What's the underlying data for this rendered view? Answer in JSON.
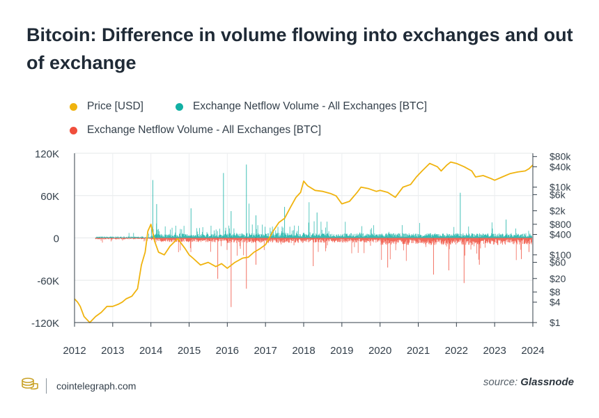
{
  "title": "Bitcoin: Difference in volume flowing into exchanges and out of exchange",
  "legend": [
    {
      "label": "Price [USD]",
      "color": "#f0b30e"
    },
    {
      "label": "Exchange Netflow Volume - All Exchanges [BTC]",
      "color": "#12b0a4"
    },
    {
      "label": "Exchange Netflow Volume - All Exchanges [BTC]",
      "color": "#f04e3c"
    }
  ],
  "brand": {
    "icon": "cointelegraph-logo-icon",
    "text": "cointelegraph.com"
  },
  "source": {
    "prefix": "source:",
    "name": "Glassnode"
  },
  "chart_data": {
    "type": "line",
    "grid": true,
    "x_ticks": [
      "2012",
      "2013",
      "2014",
      "2015",
      "2016",
      "2017",
      "2018",
      "2019",
      "2020",
      "2021",
      "2022",
      "2023",
      "2024"
    ],
    "xlim": [
      2012,
      2024
    ],
    "left_axis": {
      "ticks": [
        "120K",
        "60K",
        "0",
        "-60K",
        "-120K"
      ],
      "tick_values": [
        120000,
        60000,
        0,
        -60000,
        -120000
      ],
      "ylim": [
        -120000,
        120000
      ]
    },
    "right_axis": {
      "scale": "log",
      "ticks": [
        "$80k",
        "$40k",
        "$10k",
        "$6k",
        "$2k",
        "$800",
        "$400",
        "$100",
        "$60",
        "$20",
        "$8",
        "$4",
        "$1"
      ],
      "tick_values": [
        80000,
        40000,
        10000,
        6000,
        2000,
        800,
        400,
        100,
        60,
        20,
        8,
        4,
        1
      ],
      "ylim": [
        1,
        100000
      ]
    },
    "series": [
      {
        "name": "Price [USD]",
        "axis": "right",
        "color": "#f0b30e",
        "x": [
          2012.0,
          2012.08,
          2012.15,
          2012.25,
          2012.4,
          2012.55,
          2012.7,
          2012.85,
          2013.0,
          2013.15,
          2013.25,
          2013.35,
          2013.5,
          2013.65,
          2013.75,
          2013.85,
          2013.92,
          2014.0,
          2014.1,
          2014.2,
          2014.35,
          2014.5,
          2014.7,
          2014.9,
          2015.0,
          2015.1,
          2015.3,
          2015.5,
          2015.7,
          2015.85,
          2016.0,
          2016.2,
          2016.4,
          2016.55,
          2016.7,
          2016.85,
          2017.0,
          2017.2,
          2017.35,
          2017.5,
          2017.65,
          2017.8,
          2017.92,
          2018.0,
          2018.1,
          2018.3,
          2018.5,
          2018.7,
          2018.85,
          2019.0,
          2019.2,
          2019.4,
          2019.5,
          2019.7,
          2019.9,
          2020.0,
          2020.2,
          2020.4,
          2020.6,
          2020.8,
          2020.95,
          2021.1,
          2021.3,
          2021.5,
          2021.6,
          2021.75,
          2021.85,
          2022.0,
          2022.2,
          2022.4,
          2022.5,
          2022.7,
          2022.9,
          2023.0,
          2023.2,
          2023.4,
          2023.6,
          2023.8,
          2023.9,
          2024.0
        ],
        "y": [
          5,
          4,
          3,
          1.5,
          1,
          1.5,
          2,
          3,
          3,
          3.5,
          4,
          5,
          6,
          10,
          50,
          120,
          500,
          800,
          250,
          120,
          100,
          180,
          300,
          150,
          100,
          80,
          50,
          60,
          45,
          55,
          40,
          60,
          80,
          85,
          120,
          150,
          200,
          500,
          900,
          1200,
          2500,
          5000,
          7000,
          15000,
          11000,
          8000,
          7500,
          6500,
          5500,
          3200,
          3800,
          7000,
          10000,
          9000,
          7500,
          8000,
          7000,
          5000,
          10000,
          12000,
          20000,
          30000,
          50000,
          40000,
          30000,
          45000,
          55000,
          50000,
          40000,
          30000,
          20000,
          22000,
          18000,
          16000,
          20000,
          25000,
          28000,
          30000,
          35000,
          45000
        ]
      },
      {
        "name": "Exchange Netflow Volume - All Exchanges [BTC]",
        "axis": "left",
        "color": "#12b0a4",
        "sign": "positive",
        "peaks": [
          [
            2014.05,
            82000
          ],
          [
            2014.15,
            48000
          ],
          [
            2015.05,
            42000
          ],
          [
            2015.9,
            92000
          ],
          [
            2016.1,
            38000
          ],
          [
            2016.5,
            104000
          ],
          [
            2016.75,
            32000
          ],
          [
            2017.5,
            44000
          ],
          [
            2018.35,
            36000
          ],
          [
            2022.1,
            64000
          ],
          [
            2023.3,
            26000
          ]
        ]
      },
      {
        "name": "Exchange Netflow Volume - All Exchanges [BTC]",
        "axis": "left",
        "color": "#f04e3c",
        "sign": "negative",
        "peaks": [
          [
            2015.75,
            -58000
          ],
          [
            2016.1,
            -98000
          ],
          [
            2016.5,
            -72000
          ],
          [
            2016.75,
            -38000
          ],
          [
            2018.25,
            -40000
          ],
          [
            2020.2,
            -42000
          ],
          [
            2021.4,
            -52000
          ],
          [
            2021.8,
            -46000
          ],
          [
            2022.2,
            -64000
          ],
          [
            2022.6,
            -38000
          ],
          [
            2023.7,
            -30000
          ],
          [
            2023.9,
            -20000
          ]
        ]
      }
    ]
  }
}
